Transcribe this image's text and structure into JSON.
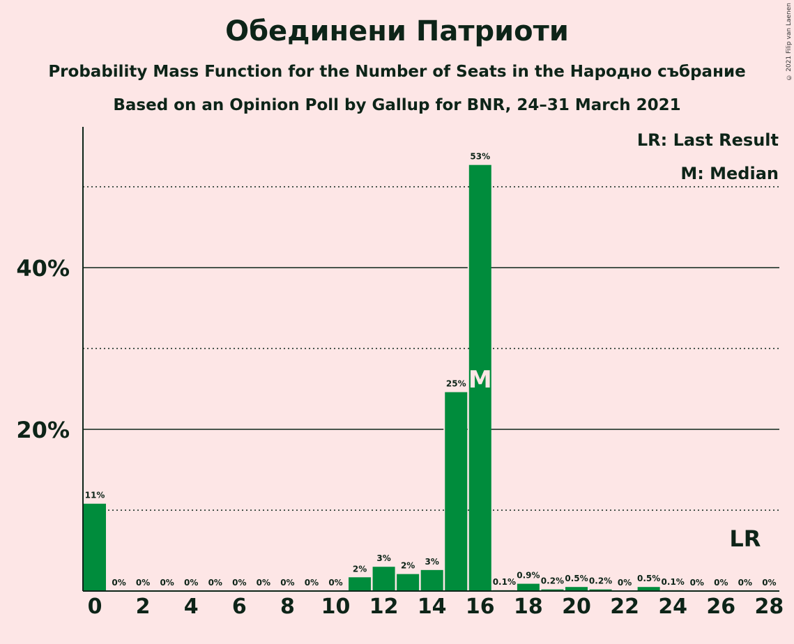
{
  "chart_data": {
    "type": "bar",
    "title": "Обединени Патриоти",
    "subtitle": "Probability Mass Function for the Number of Seats in the Народно събрание",
    "subtitle2": "Based on an Opinion Poll by Gallup for BNR, 24–31 March 2021",
    "copyright": "© 2021 Filip van Laenen",
    "legend": {
      "last_result": "LR: Last Result",
      "median": "M: Median",
      "placement": "top-right"
    },
    "x": [
      0,
      1,
      2,
      3,
      4,
      5,
      6,
      7,
      8,
      9,
      10,
      11,
      12,
      13,
      14,
      15,
      16,
      17,
      18,
      19,
      20,
      21,
      22,
      23,
      24,
      25,
      26,
      27,
      28
    ],
    "values": [
      10.8,
      0,
      0,
      0,
      0,
      0,
      0,
      0,
      0,
      0,
      0,
      1.7,
      3.0,
      2.1,
      2.6,
      24.6,
      52.7,
      0.1,
      0.9,
      0.2,
      0.5,
      0.2,
      0,
      0.5,
      0.1,
      0,
      0,
      0,
      0
    ],
    "labels": [
      "11%",
      "0%",
      "0%",
      "0%",
      "0%",
      "0%",
      "0%",
      "0%",
      "0%",
      "0%",
      "0%",
      "2%",
      "3%",
      "2%",
      "3%",
      "25%",
      "53%",
      "0.1%",
      "0.9%",
      "0.2%",
      "0.5%",
      "0.2%",
      "0%",
      "0.5%",
      "0.1%",
      "0%",
      "0%",
      "0%",
      "0%"
    ],
    "x_ticks": [
      "0",
      "2",
      "4",
      "6",
      "8",
      "10",
      "12",
      "14",
      "16",
      "18",
      "20",
      "22",
      "24",
      "26",
      "28"
    ],
    "y_ticks": [
      "20%",
      "40%"
    ],
    "ylim": [
      0,
      57
    ],
    "median_seat": 16,
    "median_marker": "M",
    "last_result_seat": 27,
    "last_result_marker": "LR",
    "colors": {
      "bar": "#008c3c",
      "text": "#0d2418",
      "background": "#fde6e6",
      "median_text": "#fde6e6"
    }
  }
}
